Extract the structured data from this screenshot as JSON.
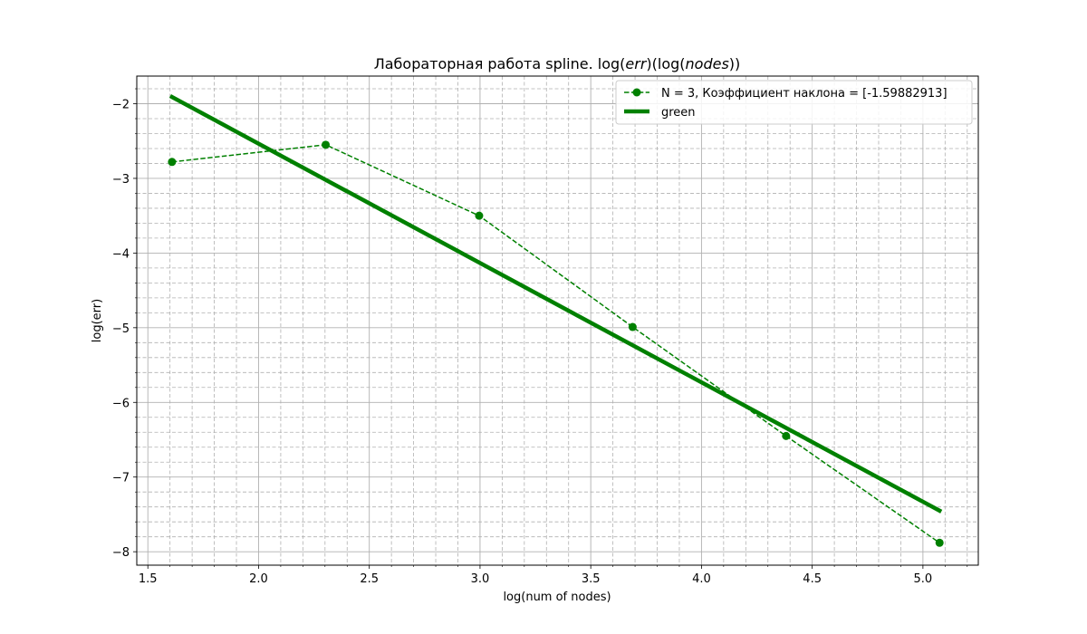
{
  "chart_data": {
    "type": "line",
    "title": {
      "prefix": "Лабораторная работа spline. log(",
      "italic1": "err",
      "mid": ")(log(",
      "italic2": "nodes",
      "suffix": "))"
    },
    "xlabel": "log(num of nodes)",
    "ylabel": "log(err)",
    "xlim": [
      1.45,
      5.25
    ],
    "ylim": [
      -8.18,
      -1.63
    ],
    "x_ticks": [
      1.5,
      2.0,
      2.5,
      3.0,
      3.5,
      4.0,
      4.5,
      5.0
    ],
    "x_tick_labels": [
      "1.5",
      "2.0",
      "2.5",
      "3.0",
      "3.5",
      "4.0",
      "4.5",
      "5.0"
    ],
    "y_ticks": [
      -8,
      -7,
      -6,
      -5,
      -4,
      -3,
      -2
    ],
    "y_tick_labels": [
      "−8",
      "−7",
      "−6",
      "−5",
      "−4",
      "−3",
      "−2"
    ],
    "grid": "major solid, minor dashed",
    "legend_position": "top-right",
    "series": [
      {
        "name": "N = 3, Коэффициент наклона = [-1.59882913]",
        "color": "#008000",
        "style": "dashed",
        "marker": "circle",
        "x": [
          1.609,
          2.303,
          2.996,
          3.689,
          4.382,
          5.075
        ],
        "y": [
          -2.78,
          -2.55,
          -3.5,
          -4.99,
          -6.45,
          -7.88
        ]
      },
      {
        "name": "green",
        "color": "#008000",
        "style": "solid-thick",
        "marker": "none",
        "x": [
          1.609,
          5.075
        ],
        "y": [
          -1.91,
          -7.45
        ]
      }
    ]
  }
}
